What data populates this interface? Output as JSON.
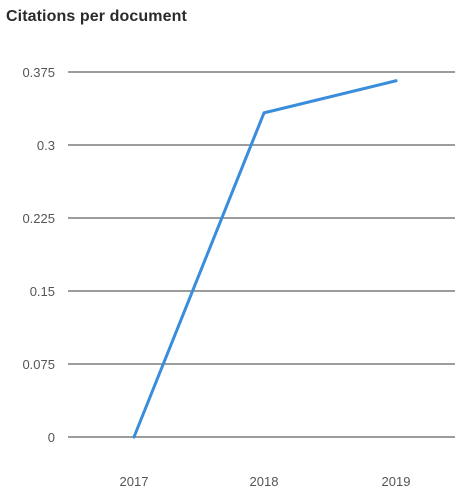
{
  "chart_data": {
    "type": "line",
    "title": "Citations per document",
    "xlabel": "",
    "ylabel": "",
    "categories": [
      "2017",
      "2018",
      "2019"
    ],
    "series": [
      {
        "values": [
          0,
          0.333,
          0.366
        ]
      }
    ],
    "ylim": [
      0,
      0.375
    ],
    "yticks": [
      "0",
      "0.075",
      "0.15",
      "0.225",
      "0.3",
      "0.375"
    ],
    "grid": true,
    "line_color": "#3a8ddb",
    "grid_color": "#3a3a3a"
  }
}
